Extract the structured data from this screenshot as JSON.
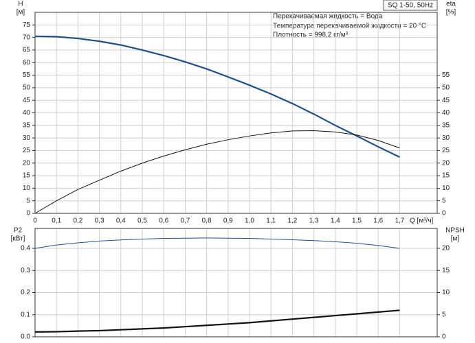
{
  "chart_data": [
    {
      "type": "line",
      "title": "SQ 1-50, 50Hz",
      "annotations": [
        "Перекачиваемая жидкость = Вода",
        "Температура перекачиваемой жидкости = 20 °C",
        "Плотность = 998,2 кг/м³"
      ],
      "y_label": "H",
      "y_unit": "[м]",
      "y2_label": "eta",
      "y2_unit": "[%]",
      "x_label": "Q [м³/ч]",
      "x": [
        0,
        0.1,
        0.2,
        0.3,
        0.4,
        0.5,
        0.6,
        0.7,
        0.8,
        0.9,
        1.0,
        1.1,
        1.2,
        1.3,
        1.4,
        1.5,
        1.6,
        1.7
      ],
      "xlim": [
        0,
        1.875
      ],
      "xticks": [
        0,
        {
          "value": 0.1,
          "label": "0,1"
        },
        {
          "value": 0.2,
          "label": "0,2"
        },
        {
          "value": 0.3,
          "label": "0,3"
        },
        {
          "value": 0.4,
          "label": "0,4"
        },
        {
          "value": 0.5,
          "label": "0,5"
        },
        {
          "value": 0.6,
          "label": "0,6"
        },
        {
          "value": 0.7,
          "label": "0,7"
        },
        {
          "value": 0.8,
          "label": "0,8"
        },
        {
          "value": 0.9,
          "label": "0,9"
        },
        {
          "value": 1.0,
          "label": "1,0"
        },
        {
          "value": 1.1,
          "label": "1,1"
        },
        {
          "value": 1.2,
          "label": "1,2"
        },
        {
          "value": 1.3,
          "label": "1,3"
        },
        {
          "value": 1.4,
          "label": "1,4"
        },
        {
          "value": 1.5,
          "label": "1,5"
        },
        {
          "value": 1.6,
          "label": "1,6"
        },
        {
          "value": 1.7,
          "label": "1,7"
        }
      ],
      "ylim": [
        0,
        80
      ],
      "yticks": [
        0,
        5,
        10,
        15,
        20,
        25,
        30,
        35,
        40,
        45,
        50,
        55,
        60,
        65,
        70,
        75
      ],
      "y2lim": [
        0,
        80
      ],
      "y2ticks": [
        0,
        5,
        10,
        15,
        20,
        25,
        30,
        35,
        40,
        45,
        50,
        55
      ],
      "grid": true,
      "series": [
        {
          "color": "#1f4e8c",
          "width": 2.2,
          "values": [
            70.5,
            70.3,
            69.6,
            68.5,
            67,
            65,
            62.8,
            60.3,
            57.5,
            54.3,
            51,
            47.5,
            43.7,
            39.5,
            35,
            30.8,
            26.5,
            22.4
          ]
        },
        {
          "color": "#111111",
          "width": 1,
          "axis": "y2",
          "values": [
            0,
            5,
            9.5,
            13.2,
            16.8,
            20,
            22.8,
            25.3,
            27.5,
            29.3,
            30.8,
            32,
            32.8,
            32.9,
            32.4,
            31.2,
            29,
            26
          ]
        }
      ]
    },
    {
      "type": "line",
      "y_label": "P2",
      "y_unit": "[кВт]",
      "y2_label": "NPSH",
      "y2_unit": "[м]",
      "x": [
        0,
        0.1,
        0.2,
        0.3,
        0.4,
        0.5,
        0.6,
        0.7,
        0.8,
        0.9,
        1.0,
        1.1,
        1.2,
        1.3,
        1.4,
        1.5,
        1.6,
        1.7
      ],
      "xlim": [
        0,
        1.875
      ],
      "ylim": [
        0,
        0.49
      ],
      "yticks": [
        {
          "value": 0,
          "label": "0.0"
        },
        0.1,
        0.2,
        0.3,
        0.4
      ],
      "y2lim": [
        0,
        24.5
      ],
      "y2ticks": [
        0,
        5,
        10,
        15,
        20
      ],
      "grid": true,
      "series": [
        {
          "color": "#1f4e8c",
          "width": 1,
          "values": [
            0.4,
            0.415,
            0.425,
            0.433,
            0.438,
            0.442,
            0.445,
            0.446,
            0.447,
            0.446,
            0.445,
            0.442,
            0.439,
            0.435,
            0.43,
            0.423,
            0.413,
            0.4
          ]
        },
        {
          "color": "#111111",
          "width": 2.2,
          "axis": "y2",
          "values": [
            1.1,
            1.15,
            1.3,
            1.4,
            1.6,
            1.8,
            2.0,
            2.3,
            2.6,
            2.9,
            3.2,
            3.6,
            4.0,
            4.4,
            4.8,
            5.2,
            5.6,
            6.0
          ]
        }
      ]
    }
  ]
}
